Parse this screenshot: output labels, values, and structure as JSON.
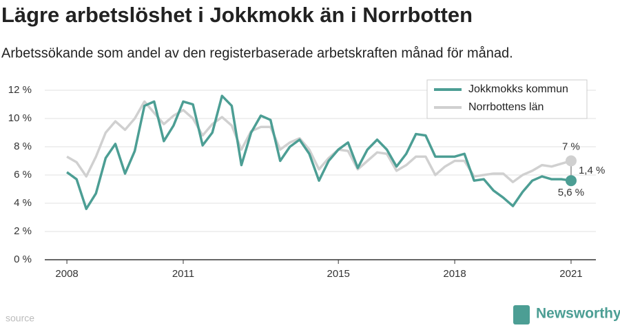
{
  "chart_data": {
    "type": "line",
    "title": "Lägre arbetslöshet i Jokkmokk än i Norrbotten",
    "subtitle": "Arbetssökande som andel av den registerbaserade arbetskraften månad för månad.",
    "x": [
      2008,
      2008.25,
      2008.5,
      2008.75,
      2009,
      2009.25,
      2009.5,
      2009.75,
      2010,
      2010.25,
      2010.5,
      2010.75,
      2011,
      2011.25,
      2011.5,
      2011.75,
      2012,
      2012.25,
      2012.5,
      2012.75,
      2013,
      2013.25,
      2013.5,
      2013.75,
      2014,
      2014.25,
      2014.5,
      2014.75,
      2015,
      2015.25,
      2015.5,
      2015.75,
      2016,
      2016.25,
      2016.5,
      2016.75,
      2017,
      2017.25,
      2017.5,
      2017.75,
      2018,
      2018.25,
      2018.5,
      2018.75,
      2019,
      2019.25,
      2019.5,
      2019.75,
      2020,
      2020.25,
      2020.5,
      2020.75,
      2021
    ],
    "series": [
      {
        "name": "Jokkmokks kommun",
        "color": "#4c9e94",
        "values": [
          6.2,
          5.7,
          3.6,
          4.7,
          7.2,
          8.2,
          6.1,
          7.7,
          10.9,
          11.2,
          8.4,
          9.5,
          11.2,
          11.0,
          8.1,
          9.0,
          11.6,
          10.9,
          6.7,
          9.0,
          10.2,
          9.9,
          7.0,
          8.0,
          8.5,
          7.5,
          5.6,
          7.0,
          7.8,
          8.3,
          6.5,
          7.8,
          8.5,
          7.8,
          6.6,
          7.5,
          8.9,
          8.8,
          7.3,
          7.3,
          7.3,
          7.5,
          5.6,
          5.7,
          4.9,
          4.4,
          3.8,
          4.8,
          5.6,
          5.9,
          5.7,
          5.7,
          5.6
        ]
      },
      {
        "name": "Norrbottens län",
        "color": "#d0d0d0",
        "values": [
          7.3,
          6.9,
          5.9,
          7.3,
          9.0,
          9.8,
          9.2,
          10.0,
          11.2,
          10.4,
          9.6,
          10.2,
          10.6,
          10.0,
          8.8,
          9.6,
          10.1,
          9.5,
          7.8,
          9.1,
          9.4,
          9.4,
          7.8,
          8.3,
          8.6,
          7.8,
          6.4,
          7.2,
          7.8,
          7.7,
          6.4,
          7.0,
          7.6,
          7.5,
          6.3,
          6.7,
          7.3,
          7.3,
          6.0,
          6.6,
          7.0,
          7.0,
          5.9,
          6.0,
          6.1,
          6.1,
          5.5,
          6.0,
          6.3,
          6.7,
          6.6,
          6.8,
          7.0
        ]
      }
    ],
    "annotations": [
      "7 %",
      "1,4 %",
      "5,6 %"
    ],
    "xlim": [
      2007.43,
      2021.64
    ],
    "xticks": [
      2008,
      2011,
      2015,
      2018,
      2021
    ],
    "ylim": [
      0,
      12
    ],
    "yticks": [
      {
        "value": 0,
        "label": "0 %"
      },
      {
        "value": 2,
        "label": "2 %"
      },
      {
        "value": 4,
        "label": "4 %"
      },
      {
        "value": 6,
        "label": "6 %"
      },
      {
        "value": 8,
        "label": "8 %"
      },
      {
        "value": 10,
        "label": "10 %"
      },
      {
        "value": 12,
        "label": "12 %"
      }
    ],
    "grid": true,
    "legend": "top-right",
    "source": "source",
    "brand": "Newsworthy"
  }
}
